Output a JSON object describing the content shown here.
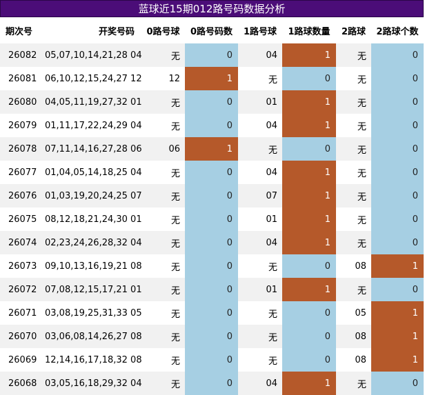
{
  "title": "蓝球近15期012路号码数据分析",
  "headers": [
    "期次号",
    "开奖号码",
    "0路号球",
    "0路号码数",
    "1路号球",
    "1路球数量",
    "2路球",
    "2路球个数"
  ],
  "rows": [
    {
      "period": "26082",
      "draw": "05,07,10,14,21,28 04",
      "r0": "无",
      "c0": "0",
      "r1": "04",
      "c1": "1",
      "r2": "无",
      "c2": "0"
    },
    {
      "period": "26081",
      "draw": "06,10,12,15,24,27 12",
      "r0": "12",
      "c0": "1",
      "r1": "无",
      "c1": "0",
      "r2": "无",
      "c2": "0"
    },
    {
      "period": "26080",
      "draw": "04,05,11,19,27,32 01",
      "r0": "无",
      "c0": "0",
      "r1": "01",
      "c1": "1",
      "r2": "无",
      "c2": "0"
    },
    {
      "period": "26079",
      "draw": "01,11,17,22,24,29 04",
      "r0": "无",
      "c0": "0",
      "r1": "04",
      "c1": "1",
      "r2": "无",
      "c2": "0"
    },
    {
      "period": "26078",
      "draw": "07,11,14,16,27,28 06",
      "r0": "06",
      "c0": "1",
      "r1": "无",
      "c1": "0",
      "r2": "无",
      "c2": "0"
    },
    {
      "period": "26077",
      "draw": "01,04,05,14,18,25 04",
      "r0": "无",
      "c0": "0",
      "r1": "04",
      "c1": "1",
      "r2": "无",
      "c2": "0"
    },
    {
      "period": "26076",
      "draw": "01,03,19,20,24,25 07",
      "r0": "无",
      "c0": "0",
      "r1": "07",
      "c1": "1",
      "r2": "无",
      "c2": "0"
    },
    {
      "period": "26075",
      "draw": "08,12,18,21,24,30 01",
      "r0": "无",
      "c0": "0",
      "r1": "01",
      "c1": "1",
      "r2": "无",
      "c2": "0"
    },
    {
      "period": "26074",
      "draw": "02,23,24,26,28,32 04",
      "r0": "无",
      "c0": "0",
      "r1": "04",
      "c1": "1",
      "r2": "无",
      "c2": "0"
    },
    {
      "period": "26073",
      "draw": "09,10,13,16,19,21 08",
      "r0": "无",
      "c0": "0",
      "r1": "无",
      "c1": "0",
      "r2": "08",
      "c2": "1"
    },
    {
      "period": "26072",
      "draw": "07,08,12,15,17,21 01",
      "r0": "无",
      "c0": "0",
      "r1": "01",
      "c1": "1",
      "r2": "无",
      "c2": "0"
    },
    {
      "period": "26071",
      "draw": "03,08,19,25,31,33 05",
      "r0": "无",
      "c0": "0",
      "r1": "无",
      "c1": "0",
      "r2": "05",
      "c2": "1"
    },
    {
      "period": "26070",
      "draw": "03,06,08,14,26,27 08",
      "r0": "无",
      "c0": "0",
      "r1": "无",
      "c1": "0",
      "r2": "08",
      "c2": "1"
    },
    {
      "period": "26069",
      "draw": "12,14,16,17,18,32 08",
      "r0": "无",
      "c0": "0",
      "r1": "无",
      "c1": "0",
      "r2": "08",
      "c2": "1"
    },
    {
      "period": "26068",
      "draw": "03,05,16,18,29,32 04",
      "r0": "无",
      "c0": "0",
      "r1": "04",
      "c1": "1",
      "r2": "无",
      "c2": "0"
    }
  ],
  "colors": {
    "title_bg": "#4b0d78",
    "hit": "#b5592a",
    "miss": "#a6cfe3"
  }
}
